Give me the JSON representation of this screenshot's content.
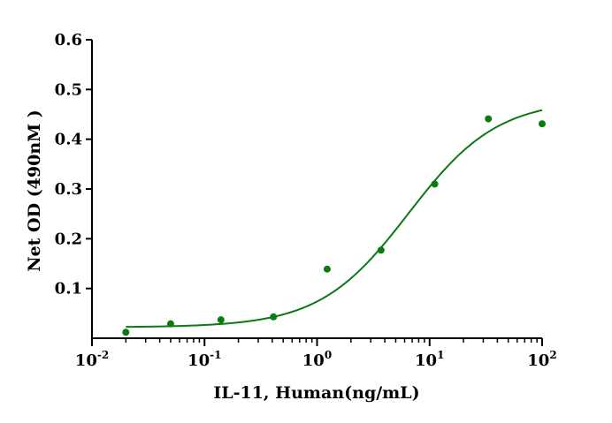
{
  "chart_data": {
    "type": "scatter",
    "title": "",
    "xlabel": "IL-11, Human(ng/mL)",
    "ylabel": "Net OD (490nM )",
    "x_scale": "log",
    "xlim": [
      0.01,
      100
    ],
    "ylim": [
      0,
      0.6
    ],
    "grid": false,
    "legend": "none",
    "x_ticks": [
      {
        "base": "10",
        "exp": "-2",
        "value": 0.01
      },
      {
        "base": "10",
        "exp": "-1",
        "value": 0.1
      },
      {
        "base": "10",
        "exp": "0",
        "value": 1
      },
      {
        "base": "10",
        "exp": "1",
        "value": 10
      },
      {
        "base": "10",
        "exp": "2",
        "value": 100
      }
    ],
    "y_ticks": [
      "0.1",
      "0.2",
      "0.3",
      "0.4",
      "0.5",
      "0.6"
    ],
    "series": [
      {
        "color": "#0a7a12",
        "points": [
          {
            "x": 0.02,
            "y": 0.012
          },
          {
            "x": 0.05,
            "y": 0.029
          },
          {
            "x": 0.14,
            "y": 0.037
          },
          {
            "x": 0.41,
            "y": 0.043
          },
          {
            "x": 1.23,
            "y": 0.139
          },
          {
            "x": 3.7,
            "y": 0.177
          },
          {
            "x": 11.1,
            "y": 0.31
          },
          {
            "x": 33.3,
            "y": 0.441
          },
          {
            "x": 100,
            "y": 0.431
          }
        ],
        "fit": {
          "model": "4PL",
          "bottom": 0.022,
          "top": 0.48,
          "ec50": 6.5,
          "hill": 1.1,
          "x_range": [
            0.02,
            100
          ]
        }
      }
    ]
  }
}
